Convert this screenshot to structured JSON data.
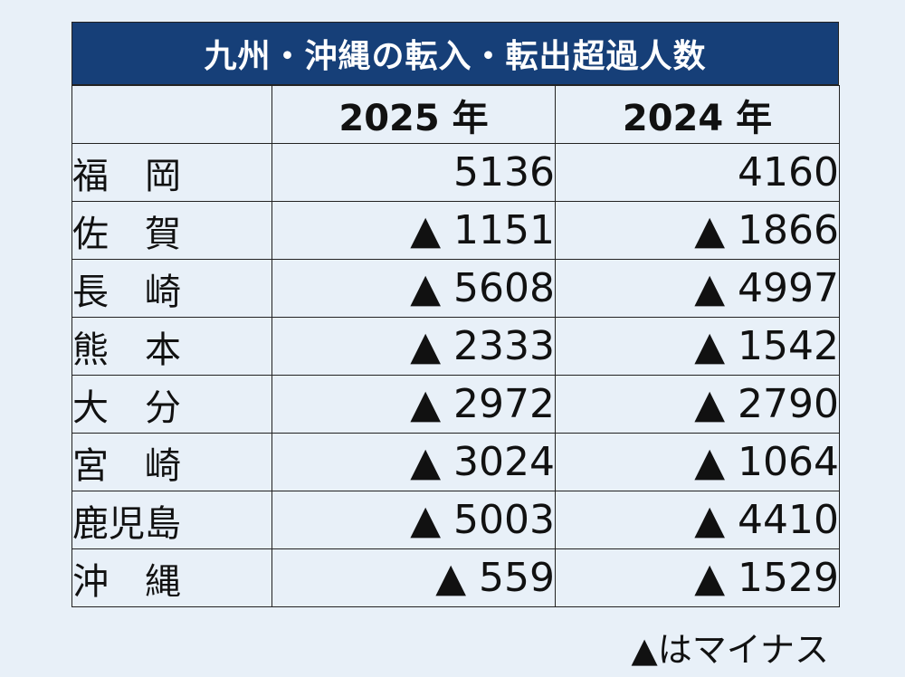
{
  "title": "九州・沖縄の転入・転出超過人数",
  "columns": [
    "",
    "2025 年",
    "2024 年"
  ],
  "rows": [
    {
      "pref": "福　岡",
      "y2025": "5136",
      "y2024": "4160"
    },
    {
      "pref": "佐　賀",
      "y2025": "▲ 1151",
      "y2024": "▲ 1866"
    },
    {
      "pref": "長　崎",
      "y2025": "▲ 5608",
      "y2024": "▲ 4997"
    },
    {
      "pref": "熊　本",
      "y2025": "▲ 2333",
      "y2024": "▲ 1542"
    },
    {
      "pref": "大　分",
      "y2025": "▲ 2972",
      "y2024": "▲ 2790"
    },
    {
      "pref": "宮　崎",
      "y2025": "▲ 3024",
      "y2024": "▲ 1064"
    },
    {
      "pref": "鹿児島",
      "y2025": "▲ 5003",
      "y2024": "▲ 4410"
    },
    {
      "pref": "沖　縄",
      "y2025": "▲ 559",
      "y2024": "▲ 1529"
    }
  ],
  "footnote": "▲はマイナス",
  "colors": {
    "background": "#e8f0f8",
    "title_bar": "#163f78",
    "title_text": "#ffffff",
    "text": "#111111",
    "border": "#222222"
  }
}
